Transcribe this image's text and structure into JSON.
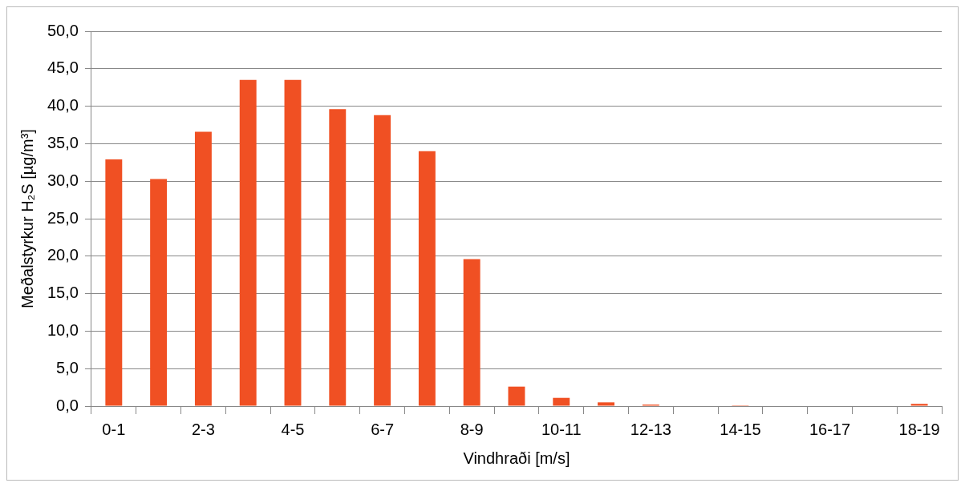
{
  "chart_data": {
    "type": "bar",
    "xlabel": "Vindhraði [m/s]",
    "ylabel": "Meðalstyrkur H₂S [µg/m³]",
    "categories": [
      "0-1",
      null,
      "2-3",
      null,
      "4-5",
      null,
      "6-7",
      null,
      "8-9",
      null,
      "10-11",
      null,
      "12-13",
      null,
      "14-15",
      null,
      "16-17",
      null,
      "18-19"
    ],
    "values": [
      32.9,
      30.3,
      36.6,
      43.5,
      43.5,
      39.6,
      38.8,
      34.0,
      19.6,
      2.6,
      1.1,
      0.5,
      0.2,
      0,
      0.1,
      0,
      0,
      0,
      0.3
    ],
    "color": "#f05023",
    "ylim": [
      0,
      50
    ],
    "yticks": [
      {
        "value": 0,
        "label": "0,0"
      },
      {
        "value": 5,
        "label": "5,0"
      },
      {
        "value": 10,
        "label": "10,0"
      },
      {
        "value": 15,
        "label": "15,0"
      },
      {
        "value": 20,
        "label": "20,0"
      },
      {
        "value": 25,
        "label": "25,0"
      },
      {
        "value": 30,
        "label": "30,0"
      },
      {
        "value": 35,
        "label": "35,0"
      },
      {
        "value": 40,
        "label": "40,0"
      },
      {
        "value": 45,
        "label": "45,0"
      },
      {
        "value": 50,
        "label": "50,0"
      }
    ],
    "grid": "y"
  }
}
